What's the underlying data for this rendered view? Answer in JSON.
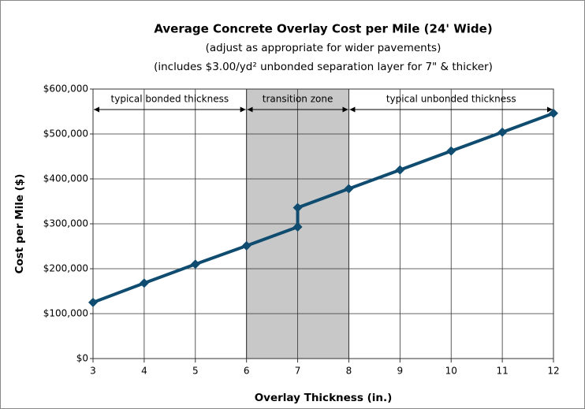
{
  "chart_data": {
    "type": "line",
    "title": "Average Concrete Overlay Cost per Mile (24' Wide)",
    "subtitle": [
      "(adjust as appropriate for wider pavements)",
      "(includes $3.00/yd² unbonded separation layer for 7\" & thicker)"
    ],
    "x_label": "Overlay Thickness (in.)",
    "y_label": "Cost per Mile ($)",
    "series": [
      {
        "name": "Cost per Mile",
        "color": "#0f4c70",
        "x": [
          3,
          4,
          5,
          6,
          7,
          7,
          8,
          9,
          10,
          11,
          12
        ],
        "values": [
          125000,
          168000,
          210000,
          251000,
          293000,
          336000,
          378000,
          420000,
          462000,
          504000,
          546000
        ]
      }
    ],
    "xlim": [
      3,
      12
    ],
    "xticks": [
      3,
      4,
      5,
      6,
      7,
      8,
      9,
      10,
      11,
      12
    ],
    "ylim": [
      0,
      600000
    ],
    "yticks": [
      {
        "value": 0,
        "label": "$0"
      },
      {
        "value": 100000,
        "label": "$100,000"
      },
      {
        "value": 200000,
        "label": "$200,000"
      },
      {
        "value": 300000,
        "label": "$300,000"
      },
      {
        "value": 400000,
        "label": "$400,000"
      },
      {
        "value": 500000,
        "label": "$500,000"
      },
      {
        "value": 600000,
        "label": "$600,000"
      }
    ],
    "grid": true,
    "shaded_region": {
      "range": [
        6,
        8
      ],
      "color": "#c8c8c8"
    },
    "annotations": [
      {
        "text": "typical bonded thickness",
        "range": [
          3,
          6
        ]
      },
      {
        "text": "transition zone",
        "range": [
          6,
          8
        ]
      },
      {
        "text": "typical unbonded thickness",
        "range": [
          8,
          12
        ]
      }
    ]
  }
}
